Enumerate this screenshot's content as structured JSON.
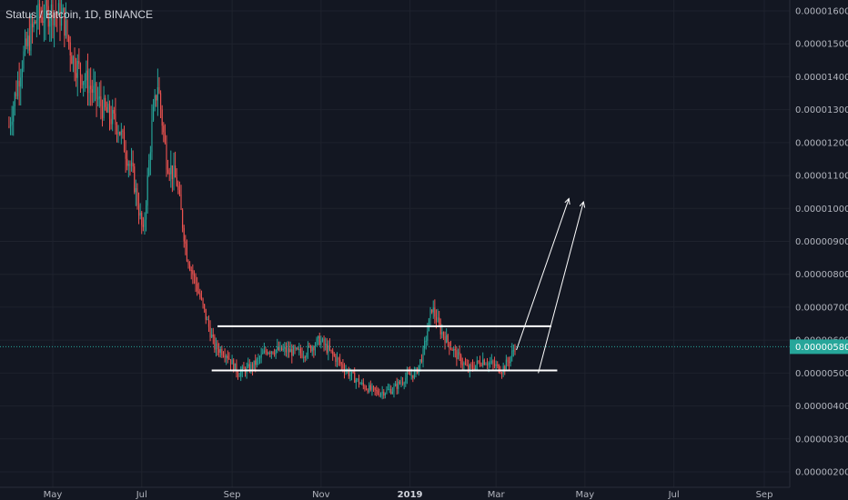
{
  "header": {
    "title": "Status / Bitcoin, 1D, BINANCE"
  },
  "colors": {
    "background": "#131722",
    "up": "#26a69a",
    "down": "#ef5350",
    "line": "#ffffff",
    "current_price": "#26a69a",
    "axis_text": "#b2b5be"
  },
  "chart_data": {
    "type": "candlestick",
    "title": "Status / Bitcoin, 1D, BINANCE",
    "xlabel": "",
    "ylabel": "",
    "ylim": [
      2e-06,
      1.65e-06
    ],
    "y_ticks": [
      "0.00001600",
      "0.00001500",
      "0.00001400",
      "0.00001300",
      "0.00001200",
      "0.00001100",
      "0.00001000",
      "0.00000900",
      "0.00000800",
      "0.00000700",
      "0.00000600",
      "0.00000500",
      "0.00000400",
      "0.00000300",
      "0.00000200"
    ],
    "x_ticks": [
      "May",
      "Jul",
      "Sep",
      "Nov",
      "2019",
      "Mar",
      "May",
      "Jul",
      "Sep"
    ],
    "x_ticks_bold": [
      "2019"
    ],
    "current_price_label": "0.00000580",
    "price_path": [
      [
        "2018-04-01",
        1.25e-05
      ],
      [
        "2018-04-10",
        1.45e-05
      ],
      [
        "2018-04-20",
        1.58e-05
      ],
      [
        "2018-05-01",
        1.6e-05
      ],
      [
        "2018-05-08",
        1.58e-05
      ],
      [
        "2018-05-15",
        1.45e-05
      ],
      [
        "2018-05-25",
        1.38e-05
      ],
      [
        "2018-06-05",
        1.3e-05
      ],
      [
        "2018-06-15",
        1.25e-05
      ],
      [
        "2018-06-25",
        1.1e-05
      ],
      [
        "2018-07-02",
        9.2e-06
      ],
      [
        "2018-07-08",
        1.25e-05
      ],
      [
        "2018-07-12",
        1.38e-05
      ],
      [
        "2018-07-18",
        1.15e-05
      ],
      [
        "2018-07-25",
        1.08e-05
      ],
      [
        "2018-08-01",
        8.6e-06
      ],
      [
        "2018-08-10",
        7.3e-06
      ],
      [
        "2018-08-20",
        5.8e-06
      ],
      [
        "2018-08-28",
        5.6e-06
      ],
      [
        "2018-09-05",
        5e-06
      ],
      [
        "2018-09-15",
        5.2e-06
      ],
      [
        "2018-09-25",
        5.7e-06
      ],
      [
        "2018-10-05",
        5.7e-06
      ],
      [
        "2018-10-20",
        5.6e-06
      ],
      [
        "2018-10-31",
        6e-06
      ],
      [
        "2018-11-10",
        5.5e-06
      ],
      [
        "2018-11-20",
        5e-06
      ],
      [
        "2018-11-30",
        4.6e-06
      ],
      [
        "2018-12-10",
        4.4e-06
      ],
      [
        "2018-12-20",
        4.5e-06
      ],
      [
        "2018-12-30",
        4.9e-06
      ],
      [
        "2019-01-05",
        5e-06
      ],
      [
        "2019-01-10",
        5.6e-06
      ],
      [
        "2019-01-16",
        7e-06
      ],
      [
        "2019-01-22",
        6.3e-06
      ],
      [
        "2019-02-01",
        5.6e-06
      ],
      [
        "2019-02-10",
        5.1e-06
      ],
      [
        "2019-02-20",
        5.4e-06
      ],
      [
        "2019-03-01",
        5.2e-06
      ],
      [
        "2019-03-05",
        5.1e-06
      ],
      [
        "2019-03-10",
        5.4e-06
      ],
      [
        "2019-03-14",
        5.8e-06
      ]
    ],
    "annotations": {
      "horizontal_lines": [
        {
          "price": 6.42e-06,
          "from": "2018-08-22",
          "to": "2019-04-08"
        },
        {
          "price": 5.08e-06,
          "from": "2018-08-18",
          "to": "2019-04-12"
        }
      ],
      "arrows": [
        {
          "from": [
            "2019-03-15",
            5.7e-06
          ],
          "to": [
            "2019-04-20",
            1.03e-05
          ]
        },
        {
          "from": [
            "2019-03-30",
            5e-06
          ],
          "to": [
            "2019-04-30",
            1.02e-05
          ]
        }
      ]
    }
  }
}
